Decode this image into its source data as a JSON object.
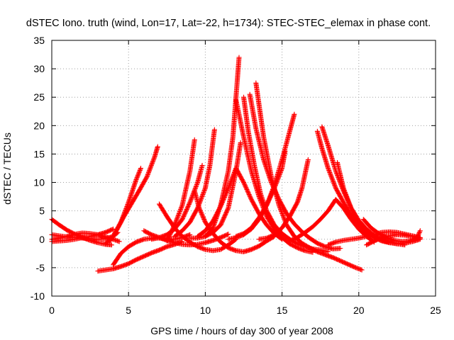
{
  "chart_data": {
    "type": "scatter",
    "title": "dSTEC Iono. truth (wind, Lon=17, Lat=-22, h=1734): STEC-STEC_elemax in phase cont.",
    "xlabel": "GPS time / hours of day 300 of year 2008",
    "ylabel": "dSTEC  / TECUs",
    "xlim": [
      0,
      25
    ],
    "ylim": [
      -10,
      35
    ],
    "xticks": [
      0,
      5,
      10,
      15,
      20,
      25
    ],
    "yticks": [
      -10,
      -5,
      0,
      5,
      10,
      15,
      20,
      25,
      30,
      35
    ],
    "grid": true,
    "marker": "+",
    "series_color": "#ff0000",
    "arcs": [
      {
        "x": [
          0.0,
          0.5,
          1.0,
          1.5,
          2.0,
          2.5,
          3.0,
          3.5,
          3.9
        ],
        "y": [
          3.5,
          2.5,
          1.6,
          0.9,
          0.3,
          -0.2,
          -0.6,
          -0.9,
          -1.0
        ]
      },
      {
        "x": [
          0.0,
          0.5,
          1.0,
          1.5,
          2.0,
          2.5,
          3.0,
          3.5,
          4.0,
          4.3
        ],
        "y": [
          0.8,
          0.6,
          0.4,
          0.3,
          0.2,
          0.1,
          0.0,
          0.1,
          0.5,
          1.2
        ]
      },
      {
        "x": [
          0.0,
          0.5,
          1.0,
          1.5,
          2.0,
          2.5,
          3.0,
          3.5,
          4.0,
          4.4
        ],
        "y": [
          0.0,
          0.2,
          0.5,
          0.9,
          1.1,
          1.0,
          0.8,
          0.4,
          0.0,
          -0.4
        ]
      },
      {
        "x": [
          0.0,
          0.5,
          1.0,
          1.5,
          2.0,
          2.5,
          3.0,
          3.5,
          4.0
        ],
        "y": [
          -0.4,
          -0.3,
          -0.2,
          0.0,
          0.3,
          0.5,
          0.8,
          1.2,
          1.8
        ]
      },
      {
        "x": [
          3.0,
          3.5,
          4.0,
          4.5,
          5.0,
          5.5,
          6.0,
          6.5,
          7.0,
          7.5,
          8.0,
          8.5
        ],
        "y": [
          -5.6,
          -5.4,
          -5.2,
          -4.8,
          -4.3,
          -3.6,
          -3.0,
          -2.4,
          -1.9,
          -1.3,
          -0.9,
          -0.4
        ]
      },
      {
        "x": [
          4.0,
          4.5,
          5.0,
          5.5,
          6.0,
          6.5,
          7.0,
          7.5,
          8.0,
          8.5,
          9.0
        ],
        "y": [
          -4.5,
          -2.5,
          -1.3,
          -0.5,
          0.0,
          0.2,
          0.2,
          0.1,
          0.0,
          0.3,
          0.8
        ]
      },
      {
        "x": [
          3.5,
          4.0,
          4.5,
          5.0,
          5.5,
          5.8
        ],
        "y": [
          -0.8,
          0.5,
          3.0,
          6.5,
          10.5,
          12.5
        ]
      },
      {
        "x": [
          3.8,
          4.2,
          4.7,
          5.2,
          5.7,
          6.2,
          6.7,
          6.9
        ],
        "y": [
          -0.3,
          1.5,
          4.0,
          6.3,
          8.6,
          11.0,
          14.5,
          16.3
        ]
      },
      {
        "x": [
          6.0,
          6.5,
          7.0,
          7.5,
          8.0,
          8.5,
          9.0,
          9.5,
          10.0,
          10.5,
          11.0,
          11.5
        ],
        "y": [
          1.5,
          0.8,
          0.3,
          -0.2,
          -0.6,
          -0.9,
          -1.0,
          -0.9,
          -0.6,
          -0.2,
          0.3,
          0.9
        ]
      },
      {
        "x": [
          7.0,
          7.5,
          8.0,
          8.5,
          9.0,
          9.5,
          10.0,
          10.5,
          11.0,
          11.5,
          12.0
        ],
        "y": [
          6.2,
          4.0,
          2.0,
          0.5,
          -0.5,
          -1.3,
          -1.8,
          -2.0,
          -1.8,
          -1.0,
          0.0
        ]
      },
      {
        "x": [
          7.5,
          8.0,
          8.5,
          9.0,
          9.3
        ],
        "y": [
          -0.3,
          2.5,
          6.0,
          12.0,
          17.5
        ]
      },
      {
        "x": [
          6.5,
          7.0,
          7.5,
          8.0,
          8.5,
          9.0,
          9.5,
          9.8
        ],
        "y": [
          0.0,
          0.3,
          0.8,
          1.8,
          3.5,
          6.5,
          10.0,
          13.0
        ]
      },
      {
        "x": [
          9.3,
          9.6,
          10.0,
          10.5,
          11.0,
          11.5,
          12.0,
          12.5,
          13.0,
          13.5,
          14.0,
          14.5
        ],
        "y": [
          8.5,
          5.5,
          3.0,
          1.0,
          -0.5,
          -1.5,
          -2.0,
          -2.2,
          -1.8,
          -1.2,
          -0.3,
          0.5
        ]
      },
      {
        "x": [
          8.0,
          8.5,
          9.0,
          9.5,
          10.0,
          10.3,
          10.6
        ],
        "y": [
          0.5,
          1.5,
          3.0,
          5.5,
          9.0,
          13.0,
          19.3
        ]
      },
      {
        "x": [
          9.0,
          9.5,
          10.0,
          10.5,
          11.0,
          11.5,
          12.0,
          12.3
        ],
        "y": [
          0.2,
          0.2,
          0.5,
          1.2,
          2.5,
          5.5,
          12.0,
          17.0
        ]
      },
      {
        "x": [
          9.5,
          10.0,
          10.5,
          11.0,
          11.5,
          12.0,
          12.5,
          13.0,
          13.5,
          14.0,
          14.5,
          15.0
        ],
        "y": [
          0.5,
          1.5,
          3.2,
          5.8,
          9.0,
          12.5,
          10.0,
          7.0,
          4.5,
          2.5,
          1.0,
          0.0
        ]
      },
      {
        "x": [
          10.0,
          10.5,
          11.0,
          11.5,
          11.8,
          12.0,
          12.2
        ],
        "y": [
          0.5,
          2.0,
          6.0,
          12.0,
          18.0,
          25.0,
          32.0
        ]
      },
      {
        "x": [
          12.0,
          12.5,
          13.0,
          13.5,
          14.0,
          14.5,
          15.0,
          15.5,
          16.0,
          16.5,
          17.0
        ],
        "y": [
          24.5,
          18.0,
          12.0,
          7.5,
          4.0,
          1.8,
          0.3,
          -0.8,
          -1.5,
          -2.0,
          -2.3
        ]
      },
      {
        "x": [
          12.5,
          12.8,
          13.2,
          13.6,
          14.0,
          14.5,
          15.0,
          15.5,
          16.0,
          16.5,
          17.0,
          17.5,
          18.0
        ],
        "y": [
          25.0,
          19.0,
          13.0,
          8.0,
          5.0,
          2.5,
          1.0,
          0.0,
          -0.8,
          -1.3,
          -1.7,
          -1.9,
          -2.2
        ]
      },
      {
        "x": [
          12.9,
          13.3,
          13.8,
          14.3,
          14.8,
          15.3,
          15.8,
          16.3,
          16.8,
          17.3,
          17.8,
          18.3,
          18.8
        ],
        "y": [
          25.5,
          19.5,
          14.0,
          10.0,
          7.0,
          4.5,
          2.7,
          1.3,
          0.2,
          -0.7,
          -1.3,
          -1.7,
          -1.6
        ]
      },
      {
        "x": [
          13.3,
          13.8,
          14.3,
          14.8,
          15.3,
          15.8,
          16.3,
          16.8,
          17.3,
          17.8,
          18.3,
          18.8,
          19.3,
          19.8,
          20.2
        ],
        "y": [
          27.5,
          18.0,
          11.0,
          6.0,
          2.5,
          0.5,
          -0.7,
          -1.5,
          -2.2,
          -2.7,
          -3.2,
          -3.8,
          -4.4,
          -5.0,
          -5.4
        ]
      },
      {
        "x": [
          11.5,
          12.0,
          12.5,
          13.0,
          13.5,
          14.0,
          14.5,
          15.0,
          15.5,
          15.8
        ],
        "y": [
          0.0,
          0.3,
          0.8,
          1.8,
          3.5,
          6.0,
          9.5,
          14.0,
          19.0,
          22.0
        ]
      },
      {
        "x": [
          12.0,
          12.5,
          13.0,
          13.5,
          14.0,
          14.5,
          15.0,
          15.2
        ],
        "y": [
          0.5,
          1.0,
          2.0,
          3.8,
          6.0,
          9.0,
          12.5,
          15.5
        ]
      },
      {
        "x": [
          13.5,
          14.0,
          14.5,
          15.0,
          15.5,
          16.0,
          16.3,
          16.7
        ],
        "y": [
          0.0,
          0.2,
          0.8,
          2.0,
          4.0,
          6.5,
          9.0,
          14.0
        ]
      },
      {
        "x": [
          15.5,
          16.0,
          16.5,
          17.0,
          17.5,
          18.0,
          18.5,
          19.0,
          19.5,
          20.0,
          20.5,
          21.0
        ],
        "y": [
          -0.3,
          0.3,
          1.2,
          2.2,
          3.5,
          5.0,
          7.0,
          5.5,
          3.5,
          1.8,
          0.5,
          -0.5
        ]
      },
      {
        "x": [
          17.3,
          17.6,
          18.0,
          18.5,
          19.0,
          19.5,
          20.0,
          20.5,
          21.0,
          21.5,
          22.0
        ],
        "y": [
          19.0,
          16.0,
          12.5,
          9.0,
          6.5,
          4.3,
          2.5,
          1.2,
          0.3,
          -0.3,
          -0.6
        ]
      },
      {
        "x": [
          17.6,
          18.0,
          18.5,
          19.0,
          19.5,
          20.0,
          20.5,
          21.0,
          21.5,
          22.0,
          22.5,
          23.0
        ],
        "y": [
          19.8,
          16.5,
          12.0,
          8.5,
          5.5,
          3.3,
          1.8,
          0.7,
          0.0,
          -0.5,
          -0.8,
          -1.0
        ]
      },
      {
        "x": [
          18.6,
          19.0,
          19.5,
          20.0,
          20.5,
          21.0,
          21.5,
          22.0,
          22.5,
          23.0,
          23.5,
          24.0
        ],
        "y": [
          13.5,
          9.0,
          5.5,
          3.0,
          1.5,
          0.5,
          -0.2,
          -0.6,
          -0.8,
          -0.7,
          -0.4,
          0.0
        ]
      },
      {
        "x": [
          18.0,
          18.5,
          19.0,
          19.5,
          20.0,
          20.5,
          21.0,
          21.5,
          22.0,
          22.5,
          23.0,
          23.5,
          24.0
        ],
        "y": [
          -1.0,
          -0.5,
          -0.2,
          0.0,
          0.2,
          0.5,
          0.9,
          1.2,
          1.3,
          1.2,
          0.9,
          0.6,
          0.3
        ]
      },
      {
        "x": [
          20.3,
          20.8,
          21.3,
          21.8,
          22.3,
          22.8,
          23.3,
          23.8,
          24.0
        ],
        "y": [
          3.5,
          2.0,
          1.0,
          0.3,
          -0.2,
          -0.4,
          -0.3,
          0.3,
          1.5
        ]
      },
      {
        "x": [
          20.5,
          21.0,
          21.5,
          22.0,
          22.5,
          23.0,
          23.5,
          24.0
        ],
        "y": [
          -1.0,
          -0.3,
          0.3,
          0.6,
          0.8,
          0.7,
          0.5,
          0.2
        ]
      }
    ]
  }
}
